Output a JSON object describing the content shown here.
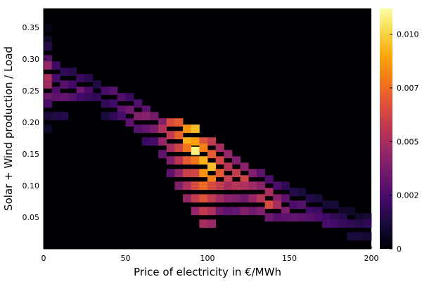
{
  "chart_data": {
    "type": "heatmap",
    "title": "",
    "xlabel": "Price of electricity in €/MWh",
    "ylabel": "Solar + Wind production / Load",
    "xlim": [
      0,
      200
    ],
    "ylim": [
      0,
      0.38
    ],
    "xticks": [
      0,
      50,
      100,
      150,
      200
    ],
    "xtick_labels": [
      "0",
      "50",
      "100",
      "150",
      "200"
    ],
    "yticks": [
      0.05,
      0.1,
      0.15,
      0.2,
      0.25,
      0.3,
      0.35
    ],
    "ytick_labels": [
      "0.05",
      "0.10",
      "0.15",
      "0.20",
      "0.25",
      "0.30",
      "0.35"
    ],
    "colorbar": {
      "colormap": "inferno",
      "range": [
        0,
        0.0112
      ],
      "ticks": [
        0,
        0.0025,
        0.005,
        0.0075,
        0.01
      ],
      "tick_labels": [
        "0",
        "0.002",
        "0.005",
        "0.007",
        "0.010"
      ]
    },
    "cell_size": {
      "x": 5,
      "y": 0.0127
    },
    "peak": {
      "x": 92.5,
      "y": 0.155,
      "value": 0.0108
    },
    "grid": false,
    "legend": "none",
    "cells": [
      {
        "x": 2.5,
        "y": 0.35,
        "v": 0.0004
      },
      {
        "x": 2.5,
        "y": 0.33,
        "v": 0.0008
      },
      {
        "x": 2.5,
        "y": 0.32,
        "v": 0.0014
      },
      {
        "x": 2.5,
        "y": 0.3,
        "v": 0.0028
      },
      {
        "x": 2.5,
        "y": 0.29,
        "v": 0.0045
      },
      {
        "x": 2.5,
        "y": 0.27,
        "v": 0.0052
      },
      {
        "x": 2.5,
        "y": 0.26,
        "v": 0.0048
      },
      {
        "x": 2.5,
        "y": 0.24,
        "v": 0.0035
      },
      {
        "x": 2.5,
        "y": 0.23,
        "v": 0.0025
      },
      {
        "x": 2.5,
        "y": 0.21,
        "v": 0.0012
      },
      {
        "x": 2.5,
        "y": 0.19,
        "v": 0.0008
      },
      {
        "x": 7.5,
        "y": 0.29,
        "v": 0.0022
      },
      {
        "x": 7.5,
        "y": 0.27,
        "v": 0.0024
      },
      {
        "x": 7.5,
        "y": 0.25,
        "v": 0.0026
      },
      {
        "x": 7.5,
        "y": 0.24,
        "v": 0.003
      },
      {
        "x": 7.5,
        "y": 0.21,
        "v": 0.0014
      },
      {
        "x": 12.5,
        "y": 0.28,
        "v": 0.0018
      },
      {
        "x": 12.5,
        "y": 0.26,
        "v": 0.0028
      },
      {
        "x": 12.5,
        "y": 0.24,
        "v": 0.0032
      },
      {
        "x": 12.5,
        "y": 0.21,
        "v": 0.0015
      },
      {
        "x": 17.5,
        "y": 0.28,
        "v": 0.0016
      },
      {
        "x": 17.5,
        "y": 0.26,
        "v": 0.0022
      },
      {
        "x": 17.5,
        "y": 0.24,
        "v": 0.0028
      },
      {
        "x": 22.5,
        "y": 0.27,
        "v": 0.002
      },
      {
        "x": 22.5,
        "y": 0.25,
        "v": 0.0034
      },
      {
        "x": 22.5,
        "y": 0.24,
        "v": 0.0022
      },
      {
        "x": 27.5,
        "y": 0.27,
        "v": 0.0016
      },
      {
        "x": 27.5,
        "y": 0.25,
        "v": 0.0024
      },
      {
        "x": 27.5,
        "y": 0.24,
        "v": 0.002
      },
      {
        "x": 32.5,
        "y": 0.26,
        "v": 0.0014
      },
      {
        "x": 32.5,
        "y": 0.24,
        "v": 0.0018
      },
      {
        "x": 37.5,
        "y": 0.25,
        "v": 0.0024
      },
      {
        "x": 37.5,
        "y": 0.23,
        "v": 0.0018
      },
      {
        "x": 37.5,
        "y": 0.21,
        "v": 0.0012
      },
      {
        "x": 42.5,
        "y": 0.25,
        "v": 0.0028
      },
      {
        "x": 42.5,
        "y": 0.23,
        "v": 0.0022
      },
      {
        "x": 42.5,
        "y": 0.21,
        "v": 0.0018
      },
      {
        "x": 47.5,
        "y": 0.24,
        "v": 0.0026
      },
      {
        "x": 47.5,
        "y": 0.22,
        "v": 0.003
      },
      {
        "x": 47.5,
        "y": 0.21,
        "v": 0.0024
      },
      {
        "x": 52.5,
        "y": 0.24,
        "v": 0.002
      },
      {
        "x": 52.5,
        "y": 0.22,
        "v": 0.0035
      },
      {
        "x": 52.5,
        "y": 0.2,
        "v": 0.003
      },
      {
        "x": 57.5,
        "y": 0.23,
        "v": 0.0026
      },
      {
        "x": 57.5,
        "y": 0.21,
        "v": 0.004
      },
      {
        "x": 57.5,
        "y": 0.19,
        "v": 0.0028
      },
      {
        "x": 62.5,
        "y": 0.22,
        "v": 0.003
      },
      {
        "x": 62.5,
        "y": 0.21,
        "v": 0.0042
      },
      {
        "x": 62.5,
        "y": 0.19,
        "v": 0.0032
      },
      {
        "x": 62.5,
        "y": 0.17,
        "v": 0.002
      },
      {
        "x": 67.5,
        "y": 0.21,
        "v": 0.0036
      },
      {
        "x": 67.5,
        "y": 0.19,
        "v": 0.0038
      },
      {
        "x": 67.5,
        "y": 0.17,
        "v": 0.0024
      },
      {
        "x": 72.5,
        "y": 0.2,
        "v": 0.004
      },
      {
        "x": 72.5,
        "y": 0.19,
        "v": 0.0052
      },
      {
        "x": 72.5,
        "y": 0.17,
        "v": 0.0045
      },
      {
        "x": 72.5,
        "y": 0.15,
        "v": 0.003
      },
      {
        "x": 77.5,
        "y": 0.2,
        "v": 0.0065
      },
      {
        "x": 77.5,
        "y": 0.18,
        "v": 0.0058
      },
      {
        "x": 77.5,
        "y": 0.16,
        "v": 0.005
      },
      {
        "x": 77.5,
        "y": 0.14,
        "v": 0.004
      },
      {
        "x": 77.5,
        "y": 0.12,
        "v": 0.003
      },
      {
        "x": 82.5,
        "y": 0.2,
        "v": 0.007
      },
      {
        "x": 82.5,
        "y": 0.18,
        "v": 0.0072
      },
      {
        "x": 82.5,
        "y": 0.16,
        "v": 0.0062
      },
      {
        "x": 82.5,
        "y": 0.14,
        "v": 0.0055
      },
      {
        "x": 82.5,
        "y": 0.12,
        "v": 0.0045
      },
      {
        "x": 82.5,
        "y": 0.1,
        "v": 0.004
      },
      {
        "x": 87.5,
        "y": 0.19,
        "v": 0.0085
      },
      {
        "x": 87.5,
        "y": 0.17,
        "v": 0.0092
      },
      {
        "x": 87.5,
        "y": 0.16,
        "v": 0.0078
      },
      {
        "x": 87.5,
        "y": 0.14,
        "v": 0.007
      },
      {
        "x": 87.5,
        "y": 0.12,
        "v": 0.006
      },
      {
        "x": 87.5,
        "y": 0.1,
        "v": 0.0052
      },
      {
        "x": 87.5,
        "y": 0.08,
        "v": 0.0045
      },
      {
        "x": 92.5,
        "y": 0.19,
        "v": 0.0095
      },
      {
        "x": 92.5,
        "y": 0.17,
        "v": 0.0088
      },
      {
        "x": 92.5,
        "y": 0.155,
        "v": 0.0108
      },
      {
        "x": 92.5,
        "y": 0.14,
        "v": 0.0078
      },
      {
        "x": 92.5,
        "y": 0.12,
        "v": 0.0062
      },
      {
        "x": 92.5,
        "y": 0.1,
        "v": 0.0065
      },
      {
        "x": 92.5,
        "y": 0.08,
        "v": 0.0058
      },
      {
        "x": 92.5,
        "y": 0.06,
        "v": 0.0045
      },
      {
        "x": 97.5,
        "y": 0.17,
        "v": 0.0068
      },
      {
        "x": 97.5,
        "y": 0.16,
        "v": 0.008
      },
      {
        "x": 97.5,
        "y": 0.14,
        "v": 0.0092
      },
      {
        "x": 97.5,
        "y": 0.12,
        "v": 0.0085
      },
      {
        "x": 97.5,
        "y": 0.1,
        "v": 0.0075
      },
      {
        "x": 97.5,
        "y": 0.08,
        "v": 0.0068
      },
      {
        "x": 97.5,
        "y": 0.06,
        "v": 0.0058
      },
      {
        "x": 97.5,
        "y": 0.04,
        "v": 0.005
      },
      {
        "x": 102.5,
        "y": 0.17,
        "v": 0.0058
      },
      {
        "x": 102.5,
        "y": 0.15,
        "v": 0.007
      },
      {
        "x": 102.5,
        "y": 0.13,
        "v": 0.0095
      },
      {
        "x": 102.5,
        "y": 0.11,
        "v": 0.008
      },
      {
        "x": 102.5,
        "y": 0.1,
        "v": 0.0065
      },
      {
        "x": 102.5,
        "y": 0.08,
        "v": 0.0058
      },
      {
        "x": 102.5,
        "y": 0.06,
        "v": 0.0052
      },
      {
        "x": 102.5,
        "y": 0.04,
        "v": 0.0046
      },
      {
        "x": 107.5,
        "y": 0.16,
        "v": 0.005
      },
      {
        "x": 107.5,
        "y": 0.14,
        "v": 0.0062
      },
      {
        "x": 107.5,
        "y": 0.12,
        "v": 0.007
      },
      {
        "x": 107.5,
        "y": 0.1,
        "v": 0.0058
      },
      {
        "x": 107.5,
        "y": 0.08,
        "v": 0.0048
      },
      {
        "x": 107.5,
        "y": 0.06,
        "v": 0.0035
      },
      {
        "x": 112.5,
        "y": 0.15,
        "v": 0.0045
      },
      {
        "x": 112.5,
        "y": 0.13,
        "v": 0.0055
      },
      {
        "x": 112.5,
        "y": 0.11,
        "v": 0.006
      },
      {
        "x": 112.5,
        "y": 0.1,
        "v": 0.005
      },
      {
        "x": 112.5,
        "y": 0.08,
        "v": 0.0042
      },
      {
        "x": 112.5,
        "y": 0.06,
        "v": 0.003
      },
      {
        "x": 117.5,
        "y": 0.14,
        "v": 0.004
      },
      {
        "x": 117.5,
        "y": 0.12,
        "v": 0.0058
      },
      {
        "x": 117.5,
        "y": 0.1,
        "v": 0.0055
      },
      {
        "x": 117.5,
        "y": 0.08,
        "v": 0.004
      },
      {
        "x": 117.5,
        "y": 0.06,
        "v": 0.0032
      },
      {
        "x": 122.5,
        "y": 0.13,
        "v": 0.0042
      },
      {
        "x": 122.5,
        "y": 0.11,
        "v": 0.0062
      },
      {
        "x": 122.5,
        "y": 0.1,
        "v": 0.0052
      },
      {
        "x": 122.5,
        "y": 0.08,
        "v": 0.0035
      },
      {
        "x": 122.5,
        "y": 0.06,
        "v": 0.004
      },
      {
        "x": 127.5,
        "y": 0.12,
        "v": 0.004
      },
      {
        "x": 127.5,
        "y": 0.1,
        "v": 0.0048
      },
      {
        "x": 127.5,
        "y": 0.08,
        "v": 0.0045
      },
      {
        "x": 127.5,
        "y": 0.06,
        "v": 0.0035
      },
      {
        "x": 132.5,
        "y": 0.12,
        "v": 0.003
      },
      {
        "x": 132.5,
        "y": 0.1,
        "v": 0.0042
      },
      {
        "x": 132.5,
        "y": 0.08,
        "v": 0.0055
      },
      {
        "x": 132.5,
        "y": 0.06,
        "v": 0.004
      },
      {
        "x": 137.5,
        "y": 0.11,
        "v": 0.0025
      },
      {
        "x": 137.5,
        "y": 0.09,
        "v": 0.005
      },
      {
        "x": 137.5,
        "y": 0.07,
        "v": 0.0065
      },
      {
        "x": 137.5,
        "y": 0.05,
        "v": 0.0035
      },
      {
        "x": 142.5,
        "y": 0.1,
        "v": 0.0025
      },
      {
        "x": 142.5,
        "y": 0.08,
        "v": 0.0042
      },
      {
        "x": 142.5,
        "y": 0.07,
        "v": 0.005
      },
      {
        "x": 142.5,
        "y": 0.05,
        "v": 0.0028
      },
      {
        "x": 147.5,
        "y": 0.1,
        "v": 0.0018
      },
      {
        "x": 147.5,
        "y": 0.08,
        "v": 0.003
      },
      {
        "x": 147.5,
        "y": 0.06,
        "v": 0.004
      },
      {
        "x": 147.5,
        "y": 0.05,
        "v": 0.003
      },
      {
        "x": 152.5,
        "y": 0.09,
        "v": 0.0015
      },
      {
        "x": 152.5,
        "y": 0.07,
        "v": 0.0025
      },
      {
        "x": 152.5,
        "y": 0.05,
        "v": 0.0032
      },
      {
        "x": 157.5,
        "y": 0.09,
        "v": 0.0012
      },
      {
        "x": 157.5,
        "y": 0.07,
        "v": 0.0028
      },
      {
        "x": 157.5,
        "y": 0.05,
        "v": 0.003
      },
      {
        "x": 162.5,
        "y": 0.08,
        "v": 0.0015
      },
      {
        "x": 162.5,
        "y": 0.06,
        "v": 0.0022
      },
      {
        "x": 162.5,
        "y": 0.05,
        "v": 0.0028
      },
      {
        "x": 167.5,
        "y": 0.08,
        "v": 0.0012
      },
      {
        "x": 167.5,
        "y": 0.06,
        "v": 0.002
      },
      {
        "x": 167.5,
        "y": 0.05,
        "v": 0.0025
      },
      {
        "x": 172.5,
        "y": 0.07,
        "v": 0.001
      },
      {
        "x": 172.5,
        "y": 0.05,
        "v": 0.0022
      },
      {
        "x": 172.5,
        "y": 0.04,
        "v": 0.0024
      },
      {
        "x": 177.5,
        "y": 0.07,
        "v": 0.001
      },
      {
        "x": 177.5,
        "y": 0.05,
        "v": 0.0018
      },
      {
        "x": 177.5,
        "y": 0.04,
        "v": 0.0022
      },
      {
        "x": 182.5,
        "y": 0.06,
        "v": 0.0008
      },
      {
        "x": 182.5,
        "y": 0.05,
        "v": 0.0015
      },
      {
        "x": 182.5,
        "y": 0.04,
        "v": 0.002
      },
      {
        "x": 187.5,
        "y": 0.06,
        "v": 0.0008
      },
      {
        "x": 187.5,
        "y": 0.04,
        "v": 0.0018
      },
      {
        "x": 187.5,
        "y": 0.02,
        "v": 0.0012
      },
      {
        "x": 192.5,
        "y": 0.05,
        "v": 0.0008
      },
      {
        "x": 192.5,
        "y": 0.04,
        "v": 0.0015
      },
      {
        "x": 192.5,
        "y": 0.02,
        "v": 0.0012
      },
      {
        "x": 197.5,
        "y": 0.05,
        "v": 0.001
      },
      {
        "x": 197.5,
        "y": 0.04,
        "v": 0.0018
      },
      {
        "x": 197.5,
        "y": 0.02,
        "v": 0.001
      }
    ]
  }
}
